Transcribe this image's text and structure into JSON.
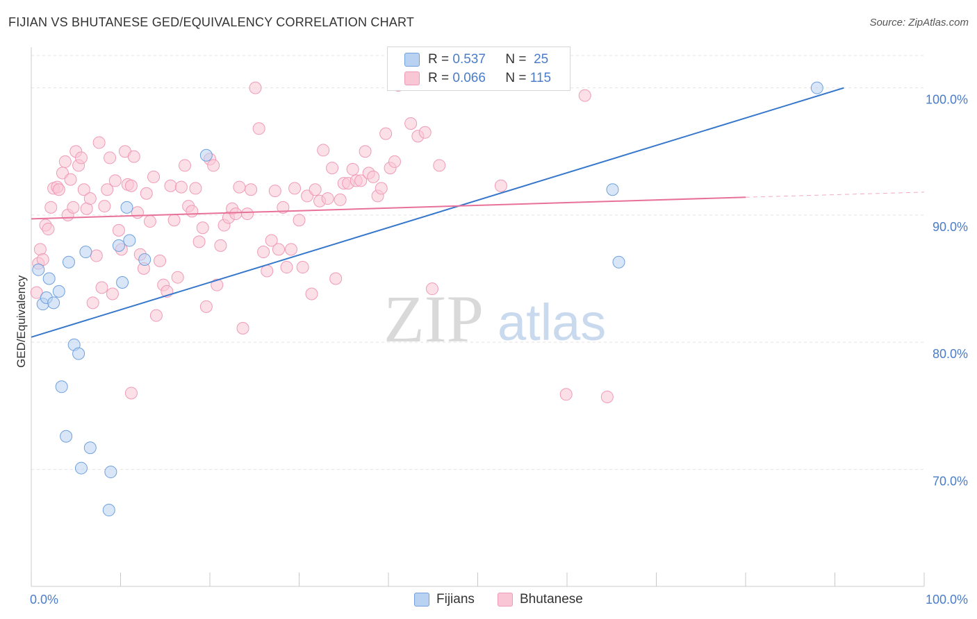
{
  "title": "FIJIAN VS BHUTANESE GED/EQUIVALENCY CORRELATION CHART",
  "source": "Source: ZipAtlas.com",
  "watermark": {
    "zip": "ZIP",
    "atlas": "atlas"
  },
  "legend_top": {
    "rows": [
      {
        "r_label": "R =",
        "r_value": "0.537",
        "n_label": "N =",
        "n_value": "25"
      },
      {
        "r_label": "R =",
        "r_value": "0.066",
        "n_label": "N =",
        "n_value": "115"
      }
    ]
  },
  "legend_bottom": {
    "fijians": "Fijians",
    "bhutanese": "Bhutanese"
  },
  "colors": {
    "fijian_fill": "#b9d2f2",
    "fijian_stroke": "#6fa0dc",
    "fijian_line": "#3677cc",
    "bhutanese_fill": "#f9c6d6",
    "bhutanese_stroke": "#ef9ab7",
    "bhutanese_line": "#e8719a",
    "tick_text": "#4a7cc9"
  },
  "chart_data": {
    "type": "scatter",
    "title": "FIJIAN VS BHUTANESE GED/EQUIVALENCY CORRELATION CHART",
    "xlabel": "",
    "ylabel": "GED/Equivalency",
    "xlim": [
      0,
      100
    ],
    "ylim": [
      60.8,
      103.2
    ],
    "x_tick_labels": [
      "0.0%",
      "100.0%"
    ],
    "y_ticks": [
      70,
      80,
      90,
      100
    ],
    "y_tick_labels": [
      "70.0%",
      "80.0%",
      "90.0%",
      "100.0%"
    ],
    "grid": true,
    "series": [
      {
        "name": "Fijians",
        "R": 0.537,
        "N": 25,
        "trend": {
          "x": [
            0,
            91
          ],
          "y": [
            80.4,
            100.0
          ]
        },
        "points": [
          [
            0.8,
            85.7
          ],
          [
            1.3,
            83.0
          ],
          [
            1.7,
            83.5
          ],
          [
            2.0,
            85.0
          ],
          [
            2.5,
            83.1
          ],
          [
            3.1,
            84.0
          ],
          [
            4.2,
            86.3
          ],
          [
            6.1,
            87.1
          ],
          [
            3.4,
            76.5
          ],
          [
            4.8,
            79.8
          ],
          [
            5.3,
            79.1
          ],
          [
            3.9,
            72.6
          ],
          [
            5.6,
            70.1
          ],
          [
            6.6,
            71.7
          ],
          [
            8.9,
            69.8
          ],
          [
            8.7,
            66.8
          ],
          [
            9.8,
            87.6
          ],
          [
            10.2,
            84.7
          ],
          [
            10.7,
            90.6
          ],
          [
            11.0,
            88.0
          ],
          [
            12.7,
            86.5
          ],
          [
            19.6,
            94.7
          ],
          [
            65.8,
            86.3
          ],
          [
            65.1,
            92.0
          ],
          [
            88.0,
            100.0
          ]
        ]
      },
      {
        "name": "Bhutanese",
        "R": 0.066,
        "N": 115,
        "trend": {
          "x": [
            0,
            80
          ],
          "y": [
            89.7,
            91.4
          ]
        },
        "trend_dashed": {
          "x": [
            80,
            100
          ],
          "y": [
            91.4,
            91.8
          ]
        },
        "points": [
          [
            0.6,
            83.9
          ],
          [
            0.8,
            86.2
          ],
          [
            1.0,
            87.3
          ],
          [
            1.3,
            86.5
          ],
          [
            1.6,
            89.2
          ],
          [
            1.9,
            88.9
          ],
          [
            2.2,
            90.6
          ],
          [
            2.5,
            92.1
          ],
          [
            2.9,
            92.2
          ],
          [
            3.1,
            92.0
          ],
          [
            3.5,
            93.3
          ],
          [
            3.8,
            94.2
          ],
          [
            4.1,
            90.0
          ],
          [
            4.4,
            92.8
          ],
          [
            4.7,
            90.6
          ],
          [
            5.0,
            95.0
          ],
          [
            5.3,
            93.9
          ],
          [
            5.6,
            94.5
          ],
          [
            5.9,
            92.0
          ],
          [
            6.2,
            90.5
          ],
          [
            6.6,
            91.3
          ],
          [
            6.9,
            83.1
          ],
          [
            7.3,
            86.8
          ],
          [
            7.6,
            95.7
          ],
          [
            7.9,
            84.3
          ],
          [
            8.2,
            90.7
          ],
          [
            8.5,
            92.0
          ],
          [
            8.8,
            94.5
          ],
          [
            9.1,
            83.8
          ],
          [
            9.4,
            92.7
          ],
          [
            9.8,
            88.8
          ],
          [
            10.1,
            87.3
          ],
          [
            10.5,
            95.0
          ],
          [
            10.8,
            92.4
          ],
          [
            11.2,
            92.3
          ],
          [
            11.5,
            94.6
          ],
          [
            11.9,
            90.2
          ],
          [
            12.2,
            86.9
          ],
          [
            12.6,
            85.8
          ],
          [
            12.9,
            91.7
          ],
          [
            13.3,
            89.5
          ],
          [
            13.7,
            93.0
          ],
          [
            14.0,
            82.1
          ],
          [
            14.4,
            86.4
          ],
          [
            14.8,
            84.5
          ],
          [
            15.2,
            84.0
          ],
          [
            15.6,
            92.3
          ],
          [
            16.0,
            89.6
          ],
          [
            16.4,
            85.1
          ],
          [
            16.8,
            92.2
          ],
          [
            17.2,
            93.9
          ],
          [
            17.6,
            90.7
          ],
          [
            18.0,
            90.3
          ],
          [
            18.4,
            92.1
          ],
          [
            18.8,
            87.9
          ],
          [
            19.2,
            89.0
          ],
          [
            19.6,
            82.8
          ],
          [
            20.0,
            94.4
          ],
          [
            20.4,
            93.9
          ],
          [
            20.8,
            84.5
          ],
          [
            21.2,
            87.6
          ],
          [
            21.6,
            89.2
          ],
          [
            22.1,
            89.8
          ],
          [
            22.5,
            90.5
          ],
          [
            22.9,
            90.1
          ],
          [
            23.3,
            92.2
          ],
          [
            23.7,
            81.1
          ],
          [
            24.2,
            90.1
          ],
          [
            24.6,
            92.0
          ],
          [
            25.1,
            100.0
          ],
          [
            25.5,
            96.8
          ],
          [
            26.0,
            87.1
          ],
          [
            26.4,
            85.6
          ],
          [
            26.9,
            88.0
          ],
          [
            27.3,
            91.9
          ],
          [
            27.7,
            87.3
          ],
          [
            28.2,
            90.6
          ],
          [
            28.6,
            85.9
          ],
          [
            29.1,
            87.3
          ],
          [
            29.5,
            92.1
          ],
          [
            30.0,
            89.6
          ],
          [
            30.4,
            85.9
          ],
          [
            30.9,
            91.5
          ],
          [
            31.4,
            83.8
          ],
          [
            31.8,
            92.0
          ],
          [
            32.3,
            91.1
          ],
          [
            32.7,
            95.1
          ],
          [
            33.2,
            91.3
          ],
          [
            33.7,
            93.7
          ],
          [
            34.1,
            85.0
          ],
          [
            34.6,
            91.2
          ],
          [
            35.0,
            92.5
          ],
          [
            35.5,
            92.5
          ],
          [
            36.0,
            93.6
          ],
          [
            36.4,
            92.7
          ],
          [
            36.9,
            92.7
          ],
          [
            37.4,
            95.0
          ],
          [
            37.8,
            93.3
          ],
          [
            38.3,
            93.0
          ],
          [
            38.8,
            91.5
          ],
          [
            39.2,
            92.1
          ],
          [
            39.7,
            96.4
          ],
          [
            40.2,
            93.7
          ],
          [
            40.7,
            94.2
          ],
          [
            41.1,
            100.2
          ],
          [
            42.5,
            97.2
          ],
          [
            43.3,
            96.2
          ],
          [
            44.1,
            96.5
          ],
          [
            44.9,
            84.2
          ],
          [
            45.7,
            93.9
          ],
          [
            52.6,
            92.3
          ],
          [
            59.9,
            75.9
          ],
          [
            64.5,
            75.7
          ],
          [
            62.0,
            99.4
          ],
          [
            11.2,
            76.0
          ]
        ]
      }
    ]
  }
}
